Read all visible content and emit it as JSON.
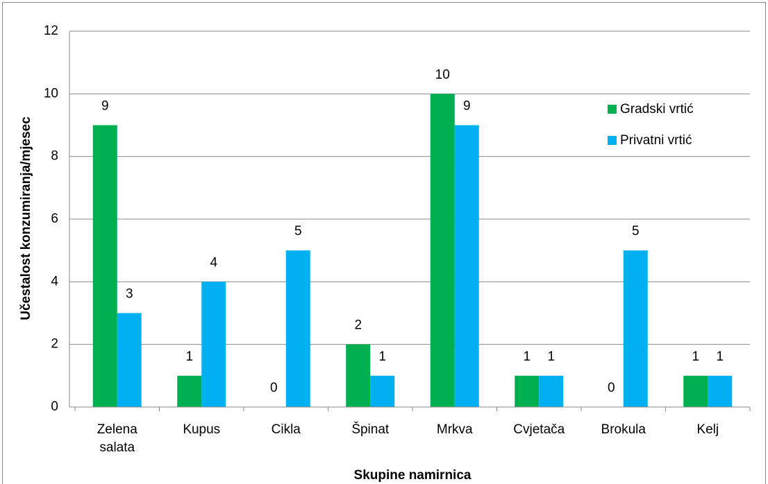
{
  "chart_data": {
    "type": "bar",
    "x_label": "Skupine namirnica",
    "y_label": "Učestalost konzumiranja/mjesec",
    "categories": [
      "Zelena salata",
      "Kupus",
      "Cikla",
      "Špinat",
      "Mrkva",
      "Cvjetača",
      "Brokula",
      "Kelj"
    ],
    "series": [
      {
        "name": "Gradski vrtić",
        "color": "#00b050",
        "values": [
          9,
          1,
          0,
          2,
          10,
          1,
          0,
          1
        ]
      },
      {
        "name": "Privatni vrtić",
        "color": "#00b0f0",
        "values": [
          3,
          4,
          5,
          1,
          9,
          1,
          5,
          1
        ]
      }
    ],
    "ylim": [
      0,
      12
    ],
    "yticks": [
      0,
      2,
      4,
      6,
      8,
      10,
      12
    ],
    "grid": true,
    "legend": "upper right"
  }
}
